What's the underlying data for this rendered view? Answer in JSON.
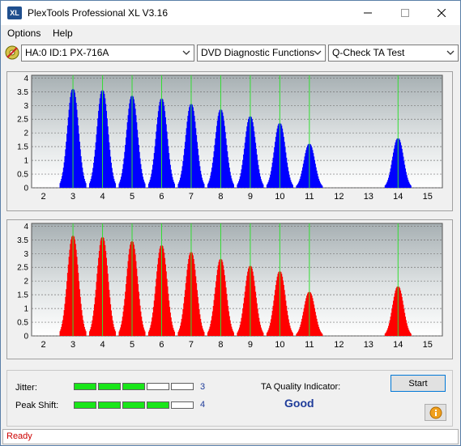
{
  "window": {
    "title": "PlexTools Professional XL V3.16",
    "app_icon_text": "XL"
  },
  "menu": {
    "items": [
      "Options",
      "Help"
    ]
  },
  "toolbar": {
    "drive": "HA:0 ID:1  PX-716A",
    "function": "DVD Diagnostic Functions",
    "test": "Q-Check TA Test"
  },
  "charts": {
    "y_ticks": [
      "4",
      "3.5",
      "3",
      "2.5",
      "2",
      "1.5",
      "1",
      "0.5",
      "0"
    ],
    "x_ticks": [
      "2",
      "3",
      "4",
      "5",
      "6",
      "7",
      "8",
      "9",
      "10",
      "11",
      "12",
      "13",
      "14",
      "15"
    ],
    "top_color": "#0000ff",
    "bottom_color": "#ff0000",
    "marker_color": "#33dd33"
  },
  "chart_data": [
    {
      "type": "area",
      "series_color": "#0000ff",
      "x_range": [
        1.6,
        15.5
      ],
      "y_range": [
        0,
        4.1
      ],
      "peaks": [
        {
          "x": 3,
          "peak": 3.6
        },
        {
          "x": 4,
          "peak": 3.55
        },
        {
          "x": 5,
          "peak": 3.35
        },
        {
          "x": 6,
          "peak": 3.25
        },
        {
          "x": 7,
          "peak": 3.05
        },
        {
          "x": 8,
          "peak": 2.85
        },
        {
          "x": 9,
          "peak": 2.6
        },
        {
          "x": 10,
          "peak": 2.35
        },
        {
          "x": 11,
          "peak": 1.6
        },
        {
          "x": 14,
          "peak": 1.8
        }
      ],
      "markers": [
        3,
        4,
        5,
        6,
        7,
        8,
        9,
        10,
        11,
        14
      ]
    },
    {
      "type": "area",
      "series_color": "#ff0000",
      "x_range": [
        1.6,
        15.5
      ],
      "y_range": [
        0,
        4.1
      ],
      "peaks": [
        {
          "x": 3,
          "peak": 3.65
        },
        {
          "x": 4,
          "peak": 3.6
        },
        {
          "x": 5,
          "peak": 3.45
        },
        {
          "x": 6,
          "peak": 3.3
        },
        {
          "x": 7,
          "peak": 3.05
        },
        {
          "x": 8,
          "peak": 2.8
        },
        {
          "x": 9,
          "peak": 2.55
        },
        {
          "x": 10,
          "peak": 2.35
        },
        {
          "x": 11,
          "peak": 1.6
        },
        {
          "x": 14,
          "peak": 1.8
        }
      ],
      "markers": [
        3,
        4,
        5,
        6,
        7,
        8,
        9,
        10,
        11,
        14
      ]
    }
  ],
  "quality": {
    "jitter_label": "Jitter:",
    "jitter_value": "3",
    "jitter_level": 3,
    "peak_label": "Peak Shift:",
    "peak_value": "4",
    "peak_level": 4,
    "segments": 5,
    "ta_label": "TA Quality Indicator:",
    "ta_value": "Good",
    "start_label": "Start"
  },
  "status": {
    "text": "Ready"
  }
}
